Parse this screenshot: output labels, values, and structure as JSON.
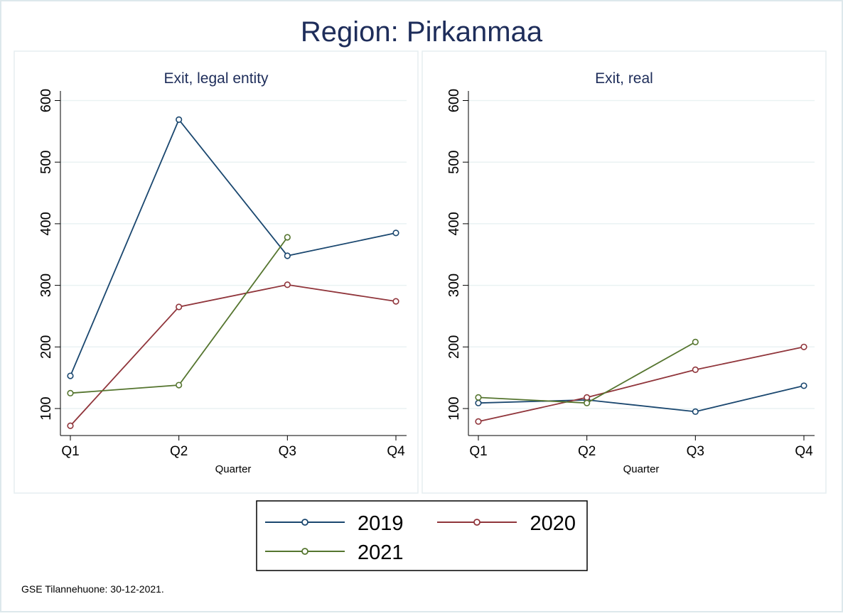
{
  "chart_data": {
    "title": "Region: Pirkanmaa",
    "note": "GSE Tilannehuone: 30-12-2021.",
    "colors": {
      "2019": "#1a476f",
      "2020": "#90353b",
      "2021": "#55752f"
    },
    "legend": {
      "placement": "bottom",
      "entries": [
        "2019",
        "2020",
        "2021"
      ]
    },
    "panels": [
      {
        "type": "line",
        "title": "Exit, legal entity",
        "xlabel": "Quarter",
        "categories": [
          "Q1",
          "Q2",
          "Q3",
          "Q4"
        ],
        "ylim": [
          55,
          615
        ],
        "yticks": [
          100,
          200,
          300,
          400,
          500,
          600
        ],
        "grid": true,
        "series": [
          {
            "name": "2019",
            "values": [
              153,
              569,
              348,
              385
            ]
          },
          {
            "name": "2020",
            "values": [
              72,
              265,
              301,
              274
            ]
          },
          {
            "name": "2021",
            "values": [
              125,
              138,
              378
            ]
          }
        ]
      },
      {
        "type": "line",
        "title": "Exit, real",
        "xlabel": "Quarter",
        "categories": [
          "Q1",
          "Q2",
          "Q3",
          "Q4"
        ],
        "ylim": [
          55,
          615
        ],
        "yticks": [
          100,
          200,
          300,
          400,
          500,
          600
        ],
        "grid": true,
        "series": [
          {
            "name": "2019",
            "values": [
              109,
              114,
              95,
              137
            ]
          },
          {
            "name": "2020",
            "values": [
              79,
              118,
              163,
              200
            ]
          },
          {
            "name": "2021",
            "values": [
              118,
              109,
              208
            ]
          }
        ]
      }
    ]
  }
}
